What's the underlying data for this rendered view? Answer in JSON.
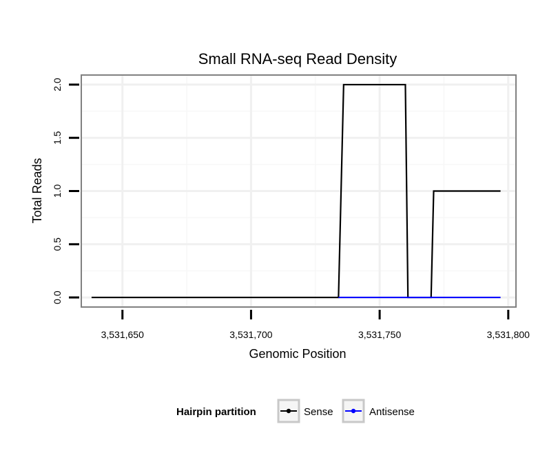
{
  "chart_data": {
    "type": "line",
    "title": "Small RNA-seq Read Density",
    "xlabel": "Genomic Position",
    "ylabel": "Total Reads",
    "xlim": [
      3531634,
      3531803
    ],
    "ylim": [
      -0.09,
      2.09
    ],
    "x_ticks": [
      3531650,
      3531700,
      3531750,
      3531800
    ],
    "x_tick_labels": [
      "3,531,650",
      "3,531,700",
      "3,531,750",
      "3,531,800"
    ],
    "y_ticks": [
      0.0,
      0.5,
      1.0,
      1.5,
      2.0
    ],
    "y_tick_labels": [
      "0.0",
      "0.5",
      "1.0",
      "1.5",
      "2.0"
    ],
    "grid": true,
    "legend_position": "bottom",
    "legend_title": "Hairpin partition",
    "series": [
      {
        "name": "Sense",
        "color": "#000000",
        "x": [
          3531638,
          3531734,
          3531736,
          3531746,
          3531756,
          3531760,
          3531761,
          3531770,
          3531771,
          3531780,
          3531797
        ],
        "y": [
          0,
          0,
          2,
          2,
          2,
          2,
          0,
          0,
          1,
          1,
          1
        ]
      },
      {
        "name": "Antisense",
        "color": "#0000ff",
        "x": [
          3531734,
          3531797
        ],
        "y": [
          0,
          0
        ]
      }
    ]
  }
}
